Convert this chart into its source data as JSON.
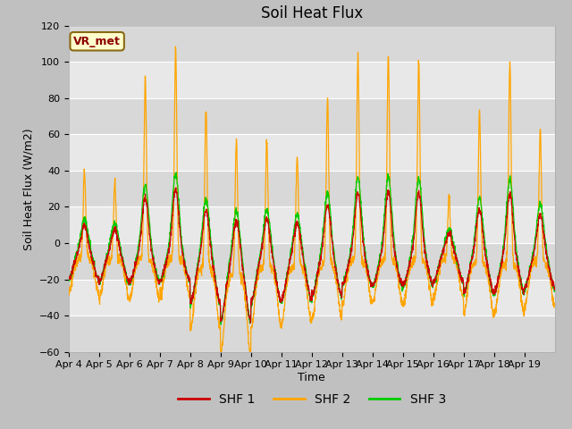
{
  "title": "Soil Heat Flux",
  "ylabel": "Soil Heat Flux (W/m2)",
  "xlabel": "Time",
  "ylim": [
    -60,
    120
  ],
  "yticks": [
    -60,
    -40,
    -20,
    0,
    20,
    40,
    60,
    80,
    100,
    120
  ],
  "line_colors": {
    "SHF 1": "#cc0000",
    "SHF 2": "#ffa500",
    "SHF 3": "#00cc00"
  },
  "legend_labels": [
    "SHF 1",
    "SHF 2",
    "SHF 3"
  ],
  "annotation": "VR_met",
  "fig_bg_color": "#c8c8c8",
  "plot_bg_color": "#e0e0e0",
  "alt_band_color": "#d0d0d0",
  "title_fontsize": 12,
  "label_fontsize": 9,
  "tick_fontsize": 8,
  "days": [
    "Apr 4",
    "Apr 5",
    "Apr 6",
    "Apr 7",
    "Apr 8",
    "Apr 9",
    "Apr 10",
    "Apr 11",
    "Apr 12",
    "Apr 13",
    "Apr 14",
    "Apr 15",
    "Apr 16",
    "Apr 17",
    "Apr 18",
    "Apr 19"
  ],
  "n_days": 16,
  "n_points_per_day": 144,
  "day_peaks_shf2": [
    48,
    43,
    101,
    116,
    87,
    74,
    70,
    62,
    93,
    113,
    113,
    111,
    35,
    84,
    111,
    73
  ],
  "night_troughs_shf2": [
    20,
    22,
    22,
    21,
    34,
    44,
    33,
    32,
    30,
    24,
    24,
    24,
    22,
    28,
    28,
    25
  ]
}
